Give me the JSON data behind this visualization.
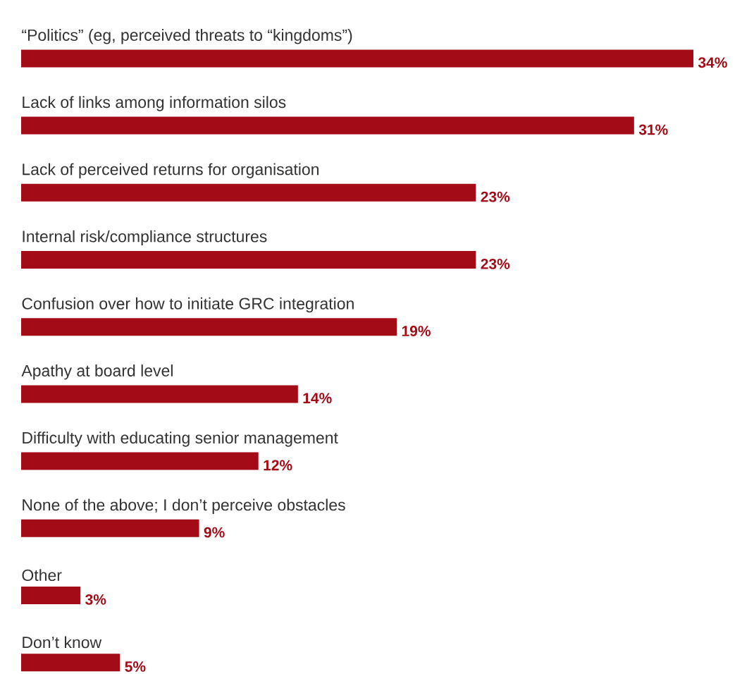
{
  "chart_data": {
    "type": "bar",
    "orientation": "horizontal",
    "categories": [
      "“Politics” (eg, perceived threats to “kingdoms”)",
      "Lack of links among information silos",
      "Lack of perceived returns for organisation",
      "Internal risk/compliance structures",
      "Confusion over how to initiate GRC integration",
      "Apathy at board level",
      "Difficulty with educating senior management",
      "None of the above; I don’t perceive obstacles",
      "Other",
      "Don’t know"
    ],
    "values": [
      34,
      31,
      23,
      23,
      19,
      14,
      12,
      9,
      3,
      5
    ],
    "value_labels": [
      "34%",
      "31%",
      "23%",
      "23%",
      "19%",
      "14%",
      "12%",
      "9%",
      "3%",
      "5%"
    ],
    "color": "#a30b16"
  }
}
